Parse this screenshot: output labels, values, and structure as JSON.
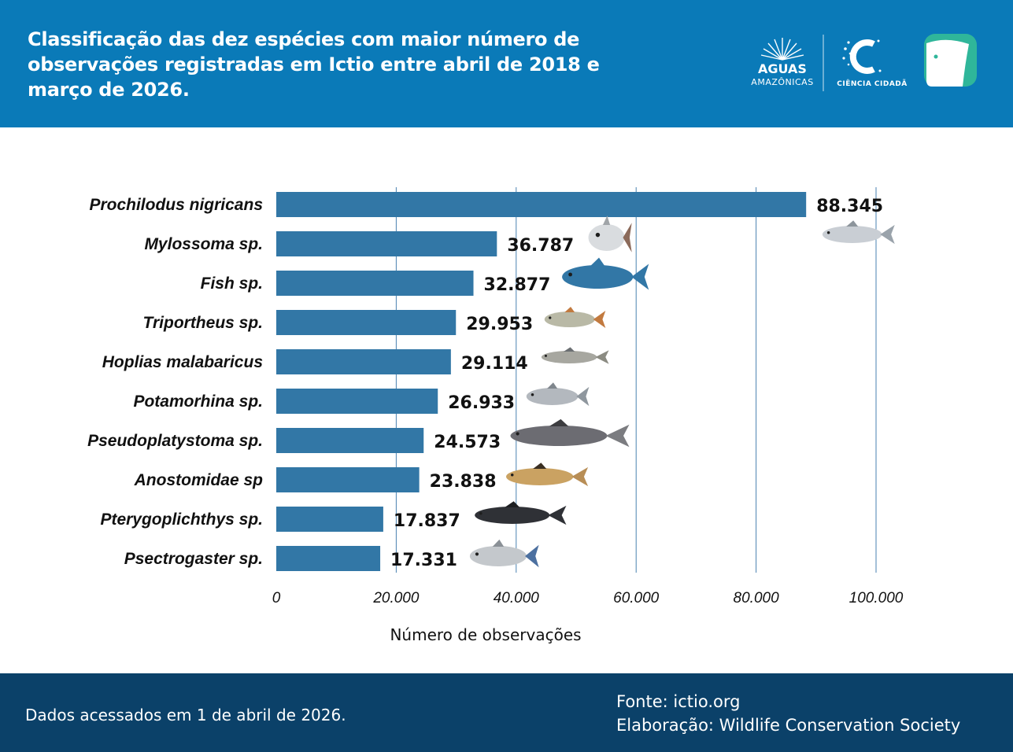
{
  "header": {
    "title": "Classificação das dez espécies com maior número de observações registradas em Ictio entre abril de 2018 e março de 2026.",
    "logos": {
      "aguas_line1": "AGUAS",
      "aguas_line2": "AMAZÔNICAS",
      "ciencia": "CIÊNCIA CIDADÃ"
    }
  },
  "chart_data": {
    "type": "bar",
    "orientation": "horizontal",
    "categories": [
      "Prochilodus nigricans",
      "Mylossoma sp.",
      "Fish sp.",
      "Triportheus sp.",
      "Hoplias malabaricus",
      "Potamorhina sp.",
      "Pseudoplatystoma sp.",
      "Anostomidae sp",
      "Pterygoplichthys sp.",
      "Psectrogaster sp."
    ],
    "values": [
      88345,
      36787,
      32877,
      29953,
      29114,
      26933,
      24573,
      23838,
      17837,
      17331
    ],
    "value_labels": [
      "88.345",
      "36.787",
      "32.877",
      "29.953",
      "29.114",
      "26.933",
      "24.573",
      "23.838",
      "17.837",
      "17.331"
    ],
    "xlim": [
      0,
      100000
    ],
    "xticks": [
      0,
      20000,
      40000,
      60000,
      80000,
      100000
    ],
    "xtick_labels": [
      "0",
      "20.000",
      "40.000",
      "60.000",
      "80.000",
      "100.000"
    ],
    "xlabel": "Número de observações",
    "grid": "vertical"
  },
  "footer": {
    "accessed": "Dados acessados em 1 de abril de 2026.",
    "source": "Fonte: ictio.org",
    "credit": "Elaboração: Wildlife Conservation Society"
  },
  "colors": {
    "header_bg": "#0a7ab8",
    "footer_bg": "#0b4169",
    "bar": "#3277a6",
    "grid": "#4a82b0",
    "app_icon": "#2fb69a"
  },
  "icons": [
    "aguas-amazonicas-logo",
    "ciencia-cidada-logo",
    "ictio-app-icon",
    "fish-illustration"
  ]
}
